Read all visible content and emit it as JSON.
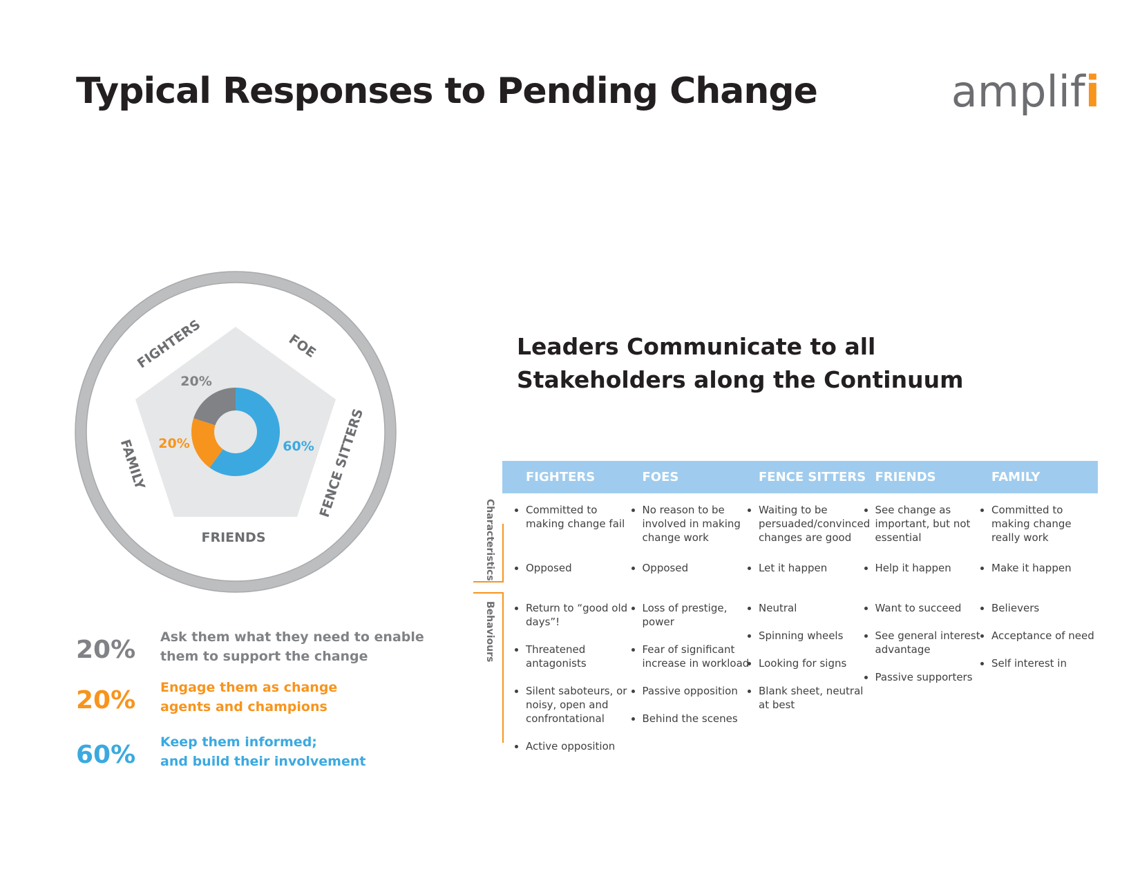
{
  "header": {
    "title": "Typical Responses to Pending Change",
    "logo_main": "amplif",
    "logo_accent": "i"
  },
  "wheel": {
    "labels": [
      "FIGHTERS",
      "FOE",
      "FENCE SITTERS",
      "FRIENDS",
      "FAMILY"
    ],
    "donut": {
      "values": [
        60,
        20,
        20
      ],
      "value_labels": [
        "60%",
        "20%",
        "20%"
      ],
      "colors": [
        "#3ba9e0",
        "#f7941d",
        "#808285"
      ]
    }
  },
  "legend": [
    {
      "value_label": "20%",
      "color": "#808285",
      "lines": [
        "Ask them what they need to enable",
        "them to support the change"
      ]
    },
    {
      "value_label": "20%",
      "color": "#f7941d",
      "lines": [
        "Engage them as change",
        "agents and champions"
      ]
    },
    {
      "value_label": "60%",
      "color": "#3ba9e0",
      "lines": [
        "Keep them informed;",
        "and build their involvement"
      ]
    }
  ],
  "table": {
    "title": [
      "Leaders Communicate to all",
      "Stakeholders along the Continuum"
    ],
    "row_labels": [
      "Characteristics",
      "Behaviours"
    ],
    "columns": [
      {
        "header": "FIGHTERS",
        "characteristics": [
          "Committed to making change fail",
          "Opposed"
        ],
        "behaviours": [
          "Return to “good old days”!",
          "Threatened antagonists",
          "Silent saboteurs, or noisy, open and confrontational",
          "Active opposition"
        ]
      },
      {
        "header": "FOES",
        "characteristics": [
          "No reason to be involved in making change work",
          "Opposed"
        ],
        "behaviours": [
          "Loss of prestige, power",
          "Fear of significant increase in workload",
          "Passive opposition",
          "Behind the scenes"
        ]
      },
      {
        "header": "FENCE SITTERS",
        "characteristics": [
          "Waiting to be persuaded/convinced changes are good",
          "Let it happen"
        ],
        "behaviours": [
          "Neutral",
          "Spinning wheels",
          "Looking for signs",
          "Blank sheet, neutral at best"
        ]
      },
      {
        "header": "FRIENDS",
        "characteristics": [
          "See change as important, but not essential",
          "Help it happen"
        ],
        "behaviours": [
          "Want to succeed",
          "See general interest advantage",
          "Passive supporters"
        ]
      },
      {
        "header": "FAMILY",
        "characteristics": [
          "Committed to making change really work",
          "Make it happen"
        ],
        "behaviours": [
          "Believers",
          "Acceptance of need",
          "Self interest in"
        ]
      }
    ]
  }
}
